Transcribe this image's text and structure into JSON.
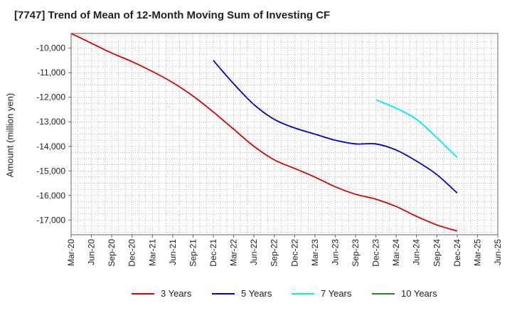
{
  "chart_data": {
    "type": "line",
    "title": "[7747]  Trend of Mean of 12-Month Moving Sum of Investing CF",
    "xlabel": "",
    "ylabel": "Amount (million yen)",
    "categories": [
      "Mar-20",
      "Jun-20",
      "Sep-20",
      "Dec-20",
      "Mar-21",
      "Jun-21",
      "Sep-21",
      "Dec-21",
      "Mar-22",
      "Jun-22",
      "Sep-22",
      "Dec-22",
      "Mar-23",
      "Jun-23",
      "Sep-23",
      "Dec-23",
      "Mar-24",
      "Jun-24",
      "Sep-24",
      "Dec-24",
      "Mar-25",
      "Jun-25"
    ],
    "ylim": [
      -17600,
      -9400
    ],
    "yticks": [
      -17000,
      -16000,
      -15000,
      -14000,
      -13000,
      -12000,
      -11000,
      -10000
    ],
    "ytick_labels": [
      "-17,000",
      "-16,000",
      "-15,000",
      "-14,000",
      "-13,000",
      "-12,000",
      "-11,000",
      "-10,000"
    ],
    "grid": true,
    "legend_position": "bottom",
    "series": [
      {
        "name": "3 Years",
        "color": "#dd0000",
        "x": [
          "Mar-20",
          "Jun-20",
          "Sep-20",
          "Dec-20",
          "Mar-21",
          "Jun-21",
          "Sep-21",
          "Dec-21",
          "Mar-22",
          "Jun-22",
          "Sep-22",
          "Dec-22",
          "Mar-23",
          "Jun-23",
          "Sep-23",
          "Dec-23",
          "Mar-24",
          "Jun-24",
          "Sep-24",
          "Dec-24"
        ],
        "values": [
          -9400,
          -9800,
          -10200,
          -10550,
          -10950,
          -11400,
          -11950,
          -12600,
          -13300,
          -14000,
          -14550,
          -14900,
          -15250,
          -15650,
          -15950,
          -16150,
          -16450,
          -16850,
          -17200,
          -17450
        ]
      },
      {
        "name": "5 Years",
        "color": "#0000cc",
        "x": [
          "Dec-21",
          "Mar-22",
          "Jun-22",
          "Sep-22",
          "Dec-22",
          "Mar-23",
          "Jun-23",
          "Sep-23",
          "Dec-23",
          "Mar-24",
          "Jun-24",
          "Sep-24",
          "Dec-24"
        ],
        "values": [
          -10500,
          -11450,
          -12300,
          -12900,
          -13250,
          -13500,
          -13750,
          -13900,
          -13900,
          -14150,
          -14600,
          -15150,
          -15900
        ]
      },
      {
        "name": "7 Years",
        "color": "#00eeee",
        "x": [
          "Dec-23",
          "Mar-24",
          "Jun-24",
          "Sep-24",
          "Dec-24"
        ],
        "values": [
          -12100,
          -12450,
          -12900,
          -13650,
          -14450
        ]
      },
      {
        "name": "10 Years",
        "color": "#228822",
        "x": [],
        "values": []
      }
    ]
  }
}
